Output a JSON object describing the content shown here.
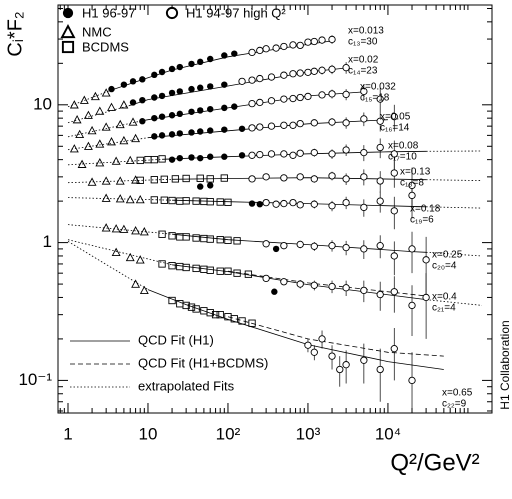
{
  "chart_data": {
    "type": "scatter",
    "ylabel": "Cᵢ*F₂",
    "xlabel": "Q²/GeV²",
    "note": "H1 Collaboration",
    "xscale": "log",
    "yscale": "log",
    "xlim": [
      0.75,
      200000
    ],
    "ylim": [
      0.058,
      53
    ],
    "xticks": [
      1,
      10,
      {
        "value": 100,
        "label": "10²"
      },
      {
        "value": 1000,
        "label": "10³"
      },
      {
        "value": 10000,
        "label": "10⁴"
      }
    ],
    "yticks": [
      {
        "value": 0.1,
        "label": "10⁻¹"
      },
      1,
      10
    ],
    "xminor": [
      0.8,
      0.9,
      2,
      3,
      4,
      5,
      6,
      7,
      8,
      9,
      20,
      30,
      40,
      50,
      60,
      70,
      80,
      90,
      200,
      300,
      400,
      500,
      600,
      700,
      800,
      900,
      2000,
      3000,
      4000,
      5000,
      6000,
      7000,
      8000,
      9000,
      20000,
      30000,
      40000,
      50000,
      60000,
      70000,
      80000,
      90000,
      100000
    ],
    "yminor": [
      0.06,
      0.07,
      0.08,
      0.09,
      0.2,
      0.3,
      0.4,
      0.5,
      0.6,
      0.7,
      0.8,
      0.9,
      2,
      3,
      4,
      5,
      6,
      7,
      8,
      9,
      20,
      30,
      40,
      50
    ],
    "series": [
      {
        "name": "H1 96-97",
        "marker": "filled-circle",
        "color": "#000000",
        "x": [
          3.5,
          5,
          6.5,
          8.5,
          12,
          15,
          20,
          25,
          35,
          45,
          60,
          90,
          120,
          6.5,
          8.5,
          12,
          15,
          20,
          25,
          35,
          45,
          60,
          90,
          8.5,
          12,
          15,
          20,
          25,
          35,
          45,
          60,
          90,
          120,
          12,
          15,
          20,
          25,
          35,
          45,
          60,
          90,
          150,
          20,
          25,
          35,
          45,
          60,
          90,
          150,
          45,
          60,
          200,
          250,
          400,
          380
        ],
        "values": [
          13,
          14,
          14.8,
          15.3,
          16.5,
          17.3,
          18.2,
          18.8,
          19.8,
          20.5,
          21.5,
          22.8,
          23.5,
          10.4,
          10.8,
          11.3,
          11.6,
          12.2,
          12.5,
          13,
          13.3,
          13.6,
          14,
          7.6,
          8,
          8.2,
          8.4,
          8.6,
          8.9,
          9.1,
          9.3,
          9.5,
          9.7,
          5.9,
          6,
          6.1,
          6.2,
          6.3,
          6.4,
          6.5,
          6.6,
          6.7,
          4,
          4.1,
          4.15,
          4.1,
          4.2,
          4.2,
          4.3,
          2.55,
          2.6,
          1.92,
          1.9,
          0.9,
          0.44
        ]
      },
      {
        "name": "H1 94-97 high Q²",
        "marker": "circle",
        "color": "#000000",
        "x": [
          200,
          250,
          300,
          400,
          500,
          650,
          800,
          1000,
          1200,
          1500,
          2000,
          150,
          200,
          250,
          350,
          500,
          650,
          800,
          1000,
          1200,
          1500,
          2000,
          3000,
          200,
          250,
          350,
          500,
          650,
          800,
          1000,
          1500,
          2000,
          3000,
          5000,
          8000,
          200,
          250,
          350,
          500,
          650,
          800,
          1200,
          2000,
          3000,
          5000,
          8000,
          12000,
          200,
          250,
          350,
          500,
          650,
          800,
          1200,
          2000,
          3000,
          5000,
          8000,
          12000,
          200,
          300,
          500,
          800,
          1200,
          2000,
          3000,
          5000,
          8000,
          12000,
          20000,
          300,
          400,
          500,
          650,
          800,
          1200,
          2000,
          3000,
          5000,
          8000,
          12000,
          20000,
          300,
          500,
          800,
          1200,
          2000,
          3000,
          5000,
          8000,
          12000,
          20000,
          30000,
          300,
          500,
          800,
          1200,
          2000,
          3000,
          5000,
          8000,
          12000,
          20000,
          30000,
          1000,
          1200,
          1500,
          2000,
          2500,
          3000,
          5000,
          8000,
          12000,
          20000
        ],
        "values": [
          24,
          24.8,
          25.5,
          25.8,
          26.5,
          27.2,
          27,
          28.5,
          28.8,
          29.5,
          29.8,
          14.8,
          15.1,
          15.5,
          15.9,
          16.4,
          16.8,
          17,
          17.2,
          17.5,
          17.8,
          18.1,
          18.6,
          10.2,
          10.4,
          10.7,
          11,
          11.1,
          11.3,
          11.5,
          11.8,
          12,
          11.9,
          12.5,
          11,
          6.8,
          6.9,
          7,
          7.1,
          7.1,
          7.3,
          7.4,
          7.5,
          7.4,
          7.9,
          7.6,
          8.2,
          4.3,
          4.35,
          4.4,
          4.4,
          4.3,
          4.45,
          4.5,
          4.4,
          4.7,
          4.5,
          4.9,
          4.4,
          2.9,
          3,
          2.95,
          3,
          2.9,
          3.05,
          2.9,
          3,
          2.8,
          3.2,
          2.6,
          1.95,
          1.9,
          1.92,
          1.95,
          1.88,
          1.9,
          1.85,
          1.95,
          1.8,
          2,
          1.7,
          2.2,
          0.98,
          0.95,
          0.97,
          0.94,
          0.95,
          0.92,
          0.9,
          0.95,
          0.8,
          0.9,
          0.75,
          0.55,
          0.52,
          0.5,
          0.49,
          0.48,
          0.47,
          0.45,
          0.42,
          0.44,
          0.35,
          0.4,
          0.18,
          0.16,
          0.2,
          0.15,
          0.12,
          0.13,
          0.14,
          0.12,
          0.17,
          0.1
        ],
        "errors": [
          0.7,
          0.7,
          0.8,
          0.8,
          0.9,
          1,
          1.1,
          1.3,
          1.5,
          1.8,
          2.2,
          0.4,
          0.4,
          0.5,
          0.5,
          0.6,
          0.7,
          0.8,
          0.9,
          1,
          1.2,
          1.4,
          1.8,
          0.3,
          0.3,
          0.3,
          0.4,
          0.4,
          0.5,
          0.5,
          0.7,
          0.9,
          1.1,
          1.5,
          2.2,
          0.2,
          0.2,
          0.2,
          0.3,
          0.3,
          0.3,
          0.4,
          0.5,
          0.7,
          0.9,
          1.2,
          1.8,
          0.15,
          0.15,
          0.15,
          0.2,
          0.2,
          0.2,
          0.3,
          0.35,
          0.45,
          0.6,
          0.8,
          1.1,
          0.1,
          0.1,
          0.12,
          0.15,
          0.18,
          0.22,
          0.28,
          0.4,
          0.5,
          0.7,
          0.9,
          0.08,
          0.08,
          0.09,
          0.1,
          0.1,
          0.13,
          0.16,
          0.2,
          0.26,
          0.35,
          0.45,
          0.7,
          0.05,
          0.05,
          0.06,
          0.07,
          0.09,
          0.11,
          0.14,
          0.18,
          0.22,
          0.3,
          0.35,
          0.03,
          0.03,
          0.035,
          0.04,
          0.05,
          0.06,
          0.08,
          0.1,
          0.13,
          0.14,
          0.2,
          0.02,
          0.02,
          0.03,
          0.03,
          0.03,
          0.035,
          0.045,
          0.05,
          0.07,
          0.06
        ]
      },
      {
        "name": "NMC",
        "marker": "triangle",
        "color": "#000000",
        "x": [
          1.2,
          1.6,
          2.2,
          3,
          1.3,
          1.8,
          2.5,
          3.5,
          5,
          1.4,
          2,
          3,
          4.5,
          6.5,
          1.2,
          1.8,
          2.5,
          3.5,
          5,
          7,
          1.5,
          2.5,
          4,
          6,
          2,
          3,
          4.5,
          7,
          3,
          4.5,
          6,
          8,
          3,
          4,
          5,
          7,
          9,
          4,
          6,
          8,
          7,
          9
        ],
        "values": [
          10,
          10.8,
          11.5,
          12.2,
          7.8,
          8.4,
          9,
          9.6,
          10,
          6.1,
          6.5,
          6.9,
          7.2,
          7.5,
          4.8,
          5,
          5.2,
          5.4,
          5.5,
          5.7,
          3.7,
          3.8,
          3.9,
          3.95,
          2.75,
          2.8,
          2.8,
          2.85,
          2.1,
          2.08,
          2.05,
          2.05,
          1.28,
          1.26,
          1.25,
          1.22,
          1.2,
          0.85,
          0.78,
          0.75,
          0.5,
          0.45
        ]
      },
      {
        "name": "BCDMS",
        "marker": "square",
        "color": "#000000",
        "x": [
          8,
          10,
          12,
          15,
          8,
          12,
          16,
          22,
          30,
          45,
          60,
          90,
          12,
          16,
          20,
          25,
          30,
          40,
          50,
          60,
          80,
          100,
          15,
          20,
          25,
          30,
          40,
          50,
          60,
          80,
          100,
          130,
          15,
          20,
          25,
          30,
          40,
          50,
          60,
          80,
          100,
          130,
          180,
          20,
          25,
          30,
          35,
          40,
          50,
          60,
          70,
          80,
          100,
          120,
          150,
          200
        ],
        "values": [
          3.95,
          4,
          4,
          4.05,
          2.83,
          2.86,
          2.88,
          2.9,
          2.92,
          2.93,
          2.9,
          2.94,
          2.04,
          2.03,
          2.02,
          2,
          2.01,
          2,
          1.99,
          1.98,
          1.97,
          1.96,
          1.15,
          1.12,
          1.1,
          1.1,
          1.08,
          1.07,
          1.06,
          1.05,
          1.04,
          1.03,
          0.7,
          0.68,
          0.67,
          0.66,
          0.65,
          0.64,
          0.63,
          0.62,
          0.62,
          0.6,
          0.59,
          0.38,
          0.36,
          0.35,
          0.34,
          0.33,
          0.32,
          0.31,
          0.3,
          0.3,
          0.29,
          0.28,
          0.27,
          0.26
        ]
      }
    ],
    "lines": {
      "fit": {
        "name": "QCD Fit (H1)",
        "dash": "solid"
      },
      "fit_bcdms": {
        "name": "QCD Fit (H1+BCDMS)",
        "dash": "dashed"
      },
      "extrapolated": {
        "name": "extrapolated Fits",
        "dash": "dotted"
      }
    },
    "bins": [
      {
        "label": "x=0.013",
        "scale": "c₁₃=30",
        "fit": {
          "x": [
            3.5,
            10,
            20,
            100,
            500,
            2000
          ],
          "values": [
            12.8,
            15.7,
            17.9,
            22.3,
            25.9,
            29.1
          ]
        },
        "extrapolated": {
          "x": [
            1,
            3.5
          ],
          "values": [
            9.67,
            12.8
          ]
        }
      },
      {
        "label": "x=0.02",
        "scale": "c₁₄=23",
        "fit": {
          "x": [
            6,
            10,
            100,
            1000,
            3000
          ],
          "values": [
            9.9,
            10.9,
            13.7,
            17.3,
            18.5
          ]
        },
        "extrapolated": {
          "x": [
            1,
            6
          ],
          "values": [
            7.41,
            9.9
          ]
        }
      },
      {
        "label": "x=0.032",
        "scale": "c₁₅=18",
        "fit": {
          "x": [
            8,
            10,
            100,
            1000,
            5000
          ],
          "values": [
            7.6,
            7.79,
            9.5,
            11.6,
            12.4
          ]
        },
        "extrapolated": {
          "x": [
            1,
            8
          ],
          "values": [
            5.86,
            7.6
          ]
        }
      },
      {
        "label": "x=0.05",
        "scale": "c₁₆=14",
        "fit": {
          "x": [
            10,
            100,
            1000,
            10000
          ],
          "values": [
            5.77,
            6.48,
            7.28,
            7.79
          ]
        },
        "extrapolated": {
          "x": [
            1,
            10
          ],
          "values": [
            4.72,
            5.77
          ]
        }
      },
      {
        "label": "x=0.08",
        "scale": "c₁₇=10",
        "fit": {
          "x": [
            15,
            100,
            1000,
            10000,
            30000
          ],
          "values": [
            4.02,
            4.2,
            4.41,
            4.56,
            4.6
          ]
        },
        "extrapolated": {
          "x": [
            1,
            15,
            20000,
            30000,
            150000
          ],
          "values": [
            3.67,
            4.02,
            null,
            4.6,
            4.62
          ]
        }
      },
      {
        "label": "x=0.13",
        "scale": "c₁₈=8",
        "fit": {
          "x": [
            20,
            100,
            1000,
            30000
          ],
          "values": [
            2.88,
            2.92,
            2.96,
            2.86
          ]
        },
        "extrapolated": {
          "x": [
            1,
            20,
            20000,
            30000,
            150000
          ],
          "values": [
            2.72,
            2.88,
            null,
            2.86,
            2.82
          ]
        }
      },
      {
        "label": "x=0.18",
        "scale": "c₁₉=6",
        "fit": {
          "x": [
            20,
            100,
            1000,
            30000
          ],
          "values": [
            2.03,
            1.98,
            1.92,
            1.82
          ]
        },
        "extrapolated": {
          "x": [
            1,
            20,
            20000,
            30000,
            150000
          ],
          "values": [
            2.12,
            2.03,
            null,
            1.82,
            1.78
          ]
        }
      },
      {
        "label": "x=0.25",
        "scale": "c₂₀=4",
        "fit": {
          "x": [
            20,
            100,
            1000,
            20000,
            30000
          ],
          "values": [
            1.15,
            1.05,
            0.967,
            0.861,
            0.85
          ]
        },
        "extrapolated": {
          "x": [
            1,
            20,
            20000,
            30000,
            150000
          ],
          "values": [
            1.35,
            1.15,
            null,
            0.85,
            0.8
          ]
        }
      },
      {
        "label": "x=0.4",
        "scale": "c₂₁=4",
        "fit": {
          "x": [
            20,
            100,
            1000,
            30000
          ],
          "values": [
            0.69,
            0.616,
            0.496,
            0.386
          ]
        },
        "fit_bcdms": {
          "x": [
            100,
            1000,
            30000
          ],
          "values": [
            0.62,
            0.51,
            0.41
          ]
        },
        "extrapolated": {
          "x": [
            1,
            20,
            20000,
            30000,
            150000
          ],
          "values": [
            1.05,
            0.69,
            null,
            0.386,
            0.35
          ]
        }
      },
      {
        "label": "x=0.65",
        "scale": "c₂₂=9",
        "fit": {
          "x": [
            10,
            30,
            100,
            1000,
            10000,
            50000
          ],
          "values": [
            0.456,
            0.355,
            0.277,
            0.182,
            0.137,
            0.12
          ]
        },
        "fit_bcdms": {
          "x": [
            100,
            1000,
            10000,
            50000
          ],
          "values": [
            0.29,
            0.2,
            0.16,
            0.15
          ]
        },
        "extrapolated": {
          "x": [
            1,
            3,
            10
          ],
          "values": [
            1.02,
            0.693,
            0.456
          ]
        }
      }
    ]
  }
}
